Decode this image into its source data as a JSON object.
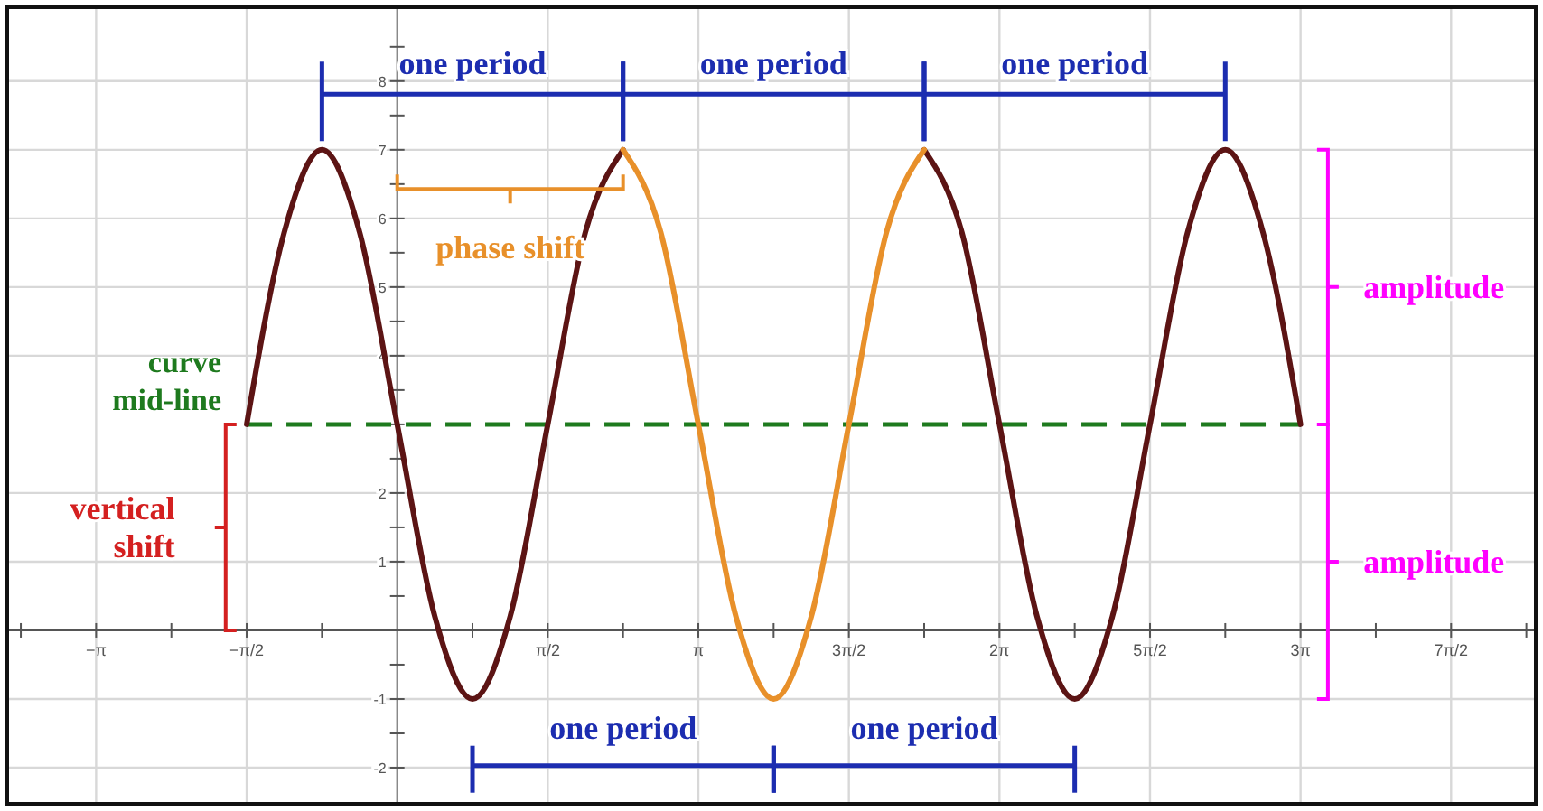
{
  "chart_data": {
    "type": "line",
    "xlim": [
      -4.05,
      11.86
    ],
    "ylim": [
      -2.5,
      9.05
    ],
    "xticks": [
      {
        "value": -3.1416,
        "label": "−π"
      },
      {
        "value": -1.5708,
        "label": "−π/2"
      },
      {
        "value": 1.5708,
        "label": "π/2"
      },
      {
        "value": 3.1416,
        "label": "π"
      },
      {
        "value": 4.7124,
        "label": "3π/2"
      },
      {
        "value": 6.2832,
        "label": "2π"
      },
      {
        "value": 7.854,
        "label": "5π/2"
      },
      {
        "value": 9.4248,
        "label": "3π"
      },
      {
        "value": 10.9956,
        "label": "7π/2"
      },
      {
        "value": -3.927,
        "label": null
      },
      {
        "value": -2.3562,
        "label": null
      },
      {
        "value": -0.7854,
        "label": null
      },
      {
        "value": 0.7854,
        "label": null
      },
      {
        "value": 2.3562,
        "label": null
      },
      {
        "value": 3.927,
        "label": null
      },
      {
        "value": 5.4978,
        "label": null
      },
      {
        "value": 7.0686,
        "label": null
      },
      {
        "value": 8.6394,
        "label": null
      },
      {
        "value": 10.2102,
        "label": null
      },
      {
        "value": 11.781,
        "label": null
      }
    ],
    "yticks": [
      -2,
      -1,
      1,
      2,
      {
        "value": 3,
        "label": null
      },
      4,
      5,
      6,
      7,
      8,
      {
        "value": -1.5,
        "label": null
      },
      {
        "value": -0.5,
        "label": null
      },
      {
        "value": 0.5,
        "label": null
      },
      {
        "value": 1.5,
        "label": null
      },
      {
        "value": 2.5,
        "label": null
      },
      {
        "value": 3.5,
        "label": null
      },
      {
        "value": 4.5,
        "label": null
      },
      {
        "value": 5.5,
        "label": null
      },
      {
        "value": 6.5,
        "label": null
      },
      {
        "value": 7.5,
        "label": null
      },
      {
        "value": 8.5,
        "label": null
      }
    ],
    "grid": true,
    "line_style": "solid",
    "marker": "none",
    "series": [
      {
        "color": "#5c1414",
        "x": [
          -1.5708,
          -1.1781,
          -0.7854,
          -0.3927,
          0,
          0.3927,
          0.7854,
          1.1781,
          1.5708,
          1.9635,
          2.3562,
          2.7489,
          3.1416,
          3.5343,
          3.927,
          4.3197,
          4.7124,
          5.1051,
          5.4978,
          5.8905,
          6.2832,
          6.6759,
          7.0686,
          7.4613,
          7.854,
          8.2467,
          8.6394,
          9.0321,
          9.4248
        ],
        "values": [
          3,
          5.8,
          7,
          5.8,
          3,
          0.2,
          -1,
          0.2,
          3,
          5.8,
          7,
          null,
          null,
          null,
          null,
          null,
          null,
          null,
          7,
          5.8,
          3,
          0.2,
          -1,
          0.2,
          3,
          5.8,
          7,
          5.8,
          3
        ]
      },
      {
        "color": "#e8902a",
        "x": [
          2.3562,
          2.7489,
          3.1416,
          3.5343,
          3.927,
          4.3197,
          4.7124,
          5.1051,
          5.4978
        ],
        "values": [
          7,
          5.8,
          3,
          0.2,
          -1,
          0.2,
          3,
          5.8,
          7
        ]
      }
    ],
    "ref_lines": [
      {
        "axis": "y",
        "value": 3,
        "label": "curve\nmid-line",
        "color": "#1e7a1e",
        "line_style": "dashed"
      }
    ],
    "annotations": [
      "one period",
      "one period",
      "one period",
      "one period",
      "one period",
      "phase shift",
      "amplitude",
      "amplitude",
      "vertical\nshift"
    ]
  }
}
